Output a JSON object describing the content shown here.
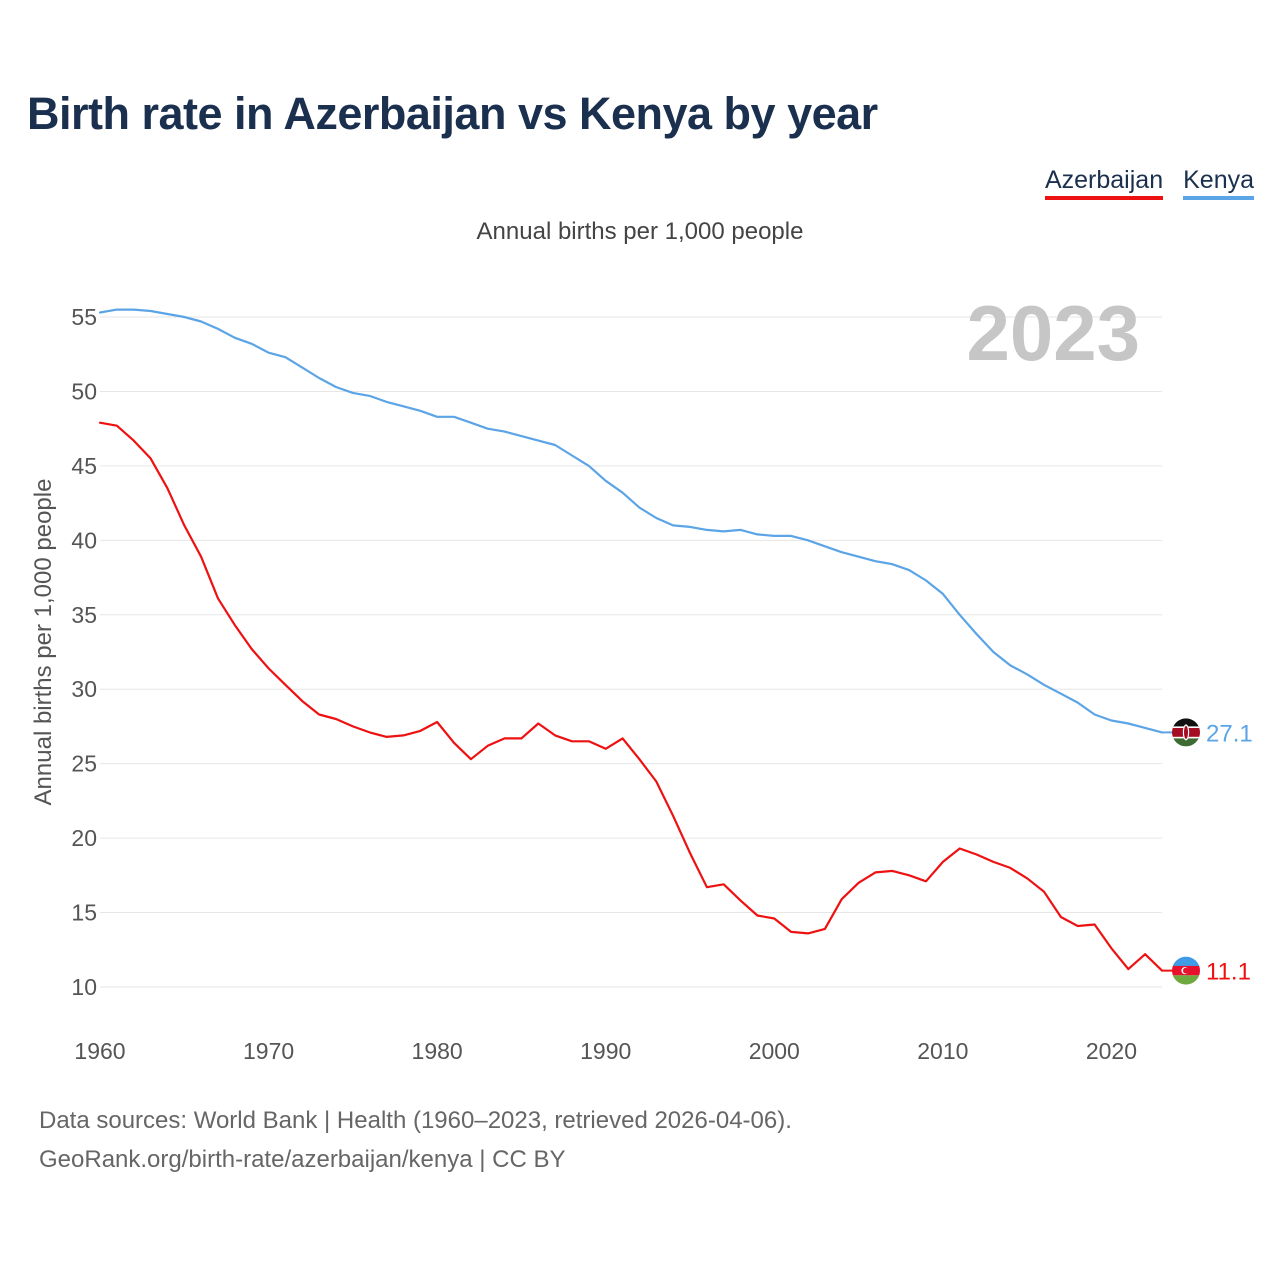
{
  "title": "Birth rate in Azerbaijan vs Kenya by year",
  "subtitle": "Annual births per 1,000 people",
  "year_badge": "2023",
  "footer": {
    "line1": "Data sources: World Bank | Health (1960–2023, retrieved 2026-04-06).",
    "line2": "GeoRank.org/birth-rate/azerbaijan/kenya | CC BY"
  },
  "colors": {
    "azerbaijan": "#ee1111",
    "kenya": "#5ba4e6"
  },
  "chart_data": {
    "type": "line",
    "title": "Birth rate in Azerbaijan vs Kenya by year",
    "xlabel": "",
    "ylabel": "Annual births per 1,000 people",
    "xlim": [
      1960,
      2023
    ],
    "ylim": [
      10,
      55
    ],
    "x_ticks": [
      1960,
      1970,
      1980,
      1990,
      2000,
      2010,
      2020
    ],
    "y_ticks": [
      10,
      15,
      20,
      25,
      30,
      35,
      40,
      45,
      50,
      55
    ],
    "grid": true,
    "legend": "top-right",
    "x": [
      1960,
      1961,
      1962,
      1963,
      1964,
      1965,
      1966,
      1967,
      1968,
      1969,
      1970,
      1971,
      1972,
      1973,
      1974,
      1975,
      1976,
      1977,
      1978,
      1979,
      1980,
      1981,
      1982,
      1983,
      1984,
      1985,
      1986,
      1987,
      1988,
      1989,
      1990,
      1991,
      1992,
      1993,
      1994,
      1995,
      1996,
      1997,
      1998,
      1999,
      2000,
      2001,
      2002,
      2003,
      2004,
      2005,
      2006,
      2007,
      2008,
      2009,
      2010,
      2011,
      2012,
      2013,
      2014,
      2015,
      2016,
      2017,
      2018,
      2019,
      2020,
      2021,
      2022,
      2023
    ],
    "series": [
      {
        "name": "Azerbaijan",
        "end_label": "11.1",
        "values": [
          47.9,
          47.7,
          46.7,
          45.5,
          43.5,
          41.0,
          38.9,
          36.1,
          34.3,
          32.7,
          31.4,
          30.3,
          29.2,
          28.3,
          28.0,
          27.5,
          27.1,
          26.8,
          26.9,
          27.2,
          27.8,
          26.4,
          25.3,
          26.2,
          26.7,
          26.7,
          27.7,
          26.9,
          26.5,
          26.5,
          26.0,
          26.7,
          25.3,
          23.8,
          21.5,
          19.0,
          16.7,
          16.9,
          15.8,
          14.8,
          14.6,
          13.7,
          13.6,
          13.9,
          15.9,
          17.0,
          17.7,
          17.8,
          17.5,
          17.1,
          18.4,
          19.3,
          18.9,
          18.4,
          18.0,
          17.3,
          16.4,
          14.7,
          14.1,
          14.2,
          12.6,
          11.2,
          12.2,
          11.1
        ]
      },
      {
        "name": "Kenya",
        "end_label": "27.1",
        "values": [
          55.3,
          55.5,
          55.5,
          55.4,
          55.2,
          55.0,
          54.7,
          54.2,
          53.6,
          53.2,
          52.6,
          52.3,
          51.6,
          50.9,
          50.3,
          49.9,
          49.7,
          49.3,
          49.0,
          48.7,
          48.3,
          48.3,
          47.9,
          47.5,
          47.3,
          47.0,
          46.7,
          46.4,
          45.7,
          45.0,
          44.0,
          43.2,
          42.2,
          41.5,
          41.0,
          40.9,
          40.7,
          40.6,
          40.7,
          40.4,
          40.3,
          40.3,
          40.0,
          39.6,
          39.2,
          38.9,
          38.6,
          38.4,
          38.0,
          37.3,
          36.4,
          35.0,
          33.7,
          32.5,
          31.6,
          31.0,
          30.3,
          29.7,
          29.1,
          28.3,
          27.9,
          27.7,
          27.4,
          27.1
        ]
      }
    ]
  }
}
